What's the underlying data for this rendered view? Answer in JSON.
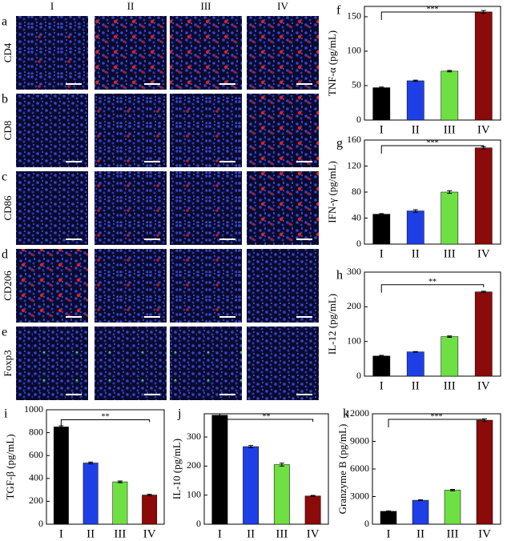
{
  "image_panels": {
    "columns": [
      "I",
      "II",
      "III",
      "IV"
    ],
    "rows": [
      {
        "letter": "a",
        "marker": "CD4"
      },
      {
        "letter": "b",
        "marker": "CD8"
      },
      {
        "letter": "c",
        "marker": "CD86"
      },
      {
        "letter": "d",
        "marker": "CD206"
      },
      {
        "letter": "e",
        "marker": "Foxp3"
      }
    ]
  },
  "chart_data": [
    {
      "type": "bar",
      "label": "f",
      "ylabel": "TNF-α (pg/mL)",
      "annotation": "***",
      "categories": [
        "I",
        "II",
        "III",
        "IV"
      ],
      "values": [
        47,
        57,
        71,
        157
      ],
      "errors": [
        1,
        1,
        1,
        2
      ],
      "colors": [
        "#000000",
        "#1f3fe6",
        "#6ee043",
        "#8b0a0a"
      ],
      "ylim": [
        0,
        165
      ],
      "yticks": [
        0,
        50,
        100,
        150
      ]
    },
    {
      "type": "bar",
      "label": "g",
      "ylabel": "IFN-γ (pg/mL)",
      "annotation": "***",
      "categories": [
        "I",
        "II",
        "III",
        "IV"
      ],
      "values": [
        46,
        51,
        80,
        148
      ],
      "errors": [
        1,
        2,
        2,
        2
      ],
      "colors": [
        "#000000",
        "#1f3fe6",
        "#6ee043",
        "#8b0a0a"
      ],
      "ylim": [
        0,
        160
      ],
      "yticks": [
        0,
        40,
        80,
        120,
        160
      ]
    },
    {
      "type": "bar",
      "label": "h",
      "ylabel": "IL-12 (pg/mL)",
      "annotation": "**",
      "categories": [
        "I",
        "II",
        "III",
        "IV"
      ],
      "values": [
        58,
        70,
        114,
        243
      ],
      "errors": [
        2,
        1,
        2,
        2
      ],
      "colors": [
        "#000000",
        "#1f3fe6",
        "#6ee043",
        "#8b0a0a"
      ],
      "ylim": [
        0,
        300
      ],
      "yticks": [
        0,
        100,
        200,
        300
      ]
    },
    {
      "type": "bar",
      "label": "i",
      "ylabel": "TGF-β (pg/mL)",
      "annotation": "**",
      "categories": [
        "I",
        "II",
        "III",
        "IV"
      ],
      "values": [
        850,
        535,
        370,
        255
      ],
      "errors": [
        10,
        8,
        8,
        6
      ],
      "colors": [
        "#000000",
        "#1f3fe6",
        "#6ee043",
        "#8b0a0a"
      ],
      "ylim": [
        0,
        1000
      ],
      "yticks": [
        0,
        200,
        400,
        600,
        800,
        1000
      ]
    },
    {
      "type": "bar",
      "label": "j",
      "ylabel": "IL-10 (pg/mL)",
      "annotation": "**",
      "categories": [
        "I",
        "II",
        "III",
        "IV"
      ],
      "values": [
        375,
        267,
        205,
        97
      ],
      "errors": [
        5,
        4,
        5,
        2
      ],
      "colors": [
        "#000000",
        "#1f3fe6",
        "#6ee043",
        "#8b0a0a"
      ],
      "ylim": [
        0,
        380
      ],
      "yticks": [
        0,
        100,
        200,
        300
      ]
    },
    {
      "type": "bar",
      "label": "k",
      "ylabel": "Granzyme B (pg/mL)",
      "annotation": "***",
      "categories": [
        "I",
        "II",
        "III",
        "IV"
      ],
      "values": [
        1400,
        2600,
        3700,
        11300
      ],
      "errors": [
        50,
        50,
        80,
        150
      ],
      "colors": [
        "#000000",
        "#1f3fe6",
        "#6ee043",
        "#8b0a0a"
      ],
      "ylim": [
        0,
        12000
      ],
      "yticks": [
        0,
        3000,
        6000,
        9000,
        12000
      ]
    }
  ]
}
